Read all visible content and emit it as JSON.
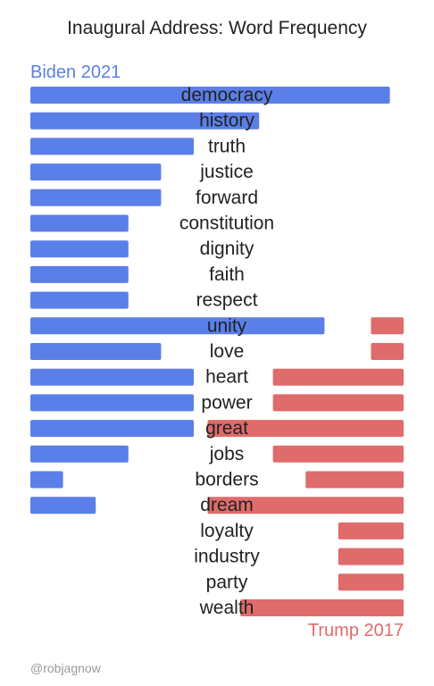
{
  "chart_data": {
    "type": "bar",
    "title": "Inaugural Address: Word Frequency",
    "categories": [
      "democracy",
      "history",
      "truth",
      "justice",
      "forward",
      "constitution",
      "dignity",
      "faith",
      "respect",
      "unity",
      "love",
      "heart",
      "power",
      "great",
      "jobs",
      "borders",
      "dream",
      "loyalty",
      "industry",
      "party",
      "wealth"
    ],
    "series": [
      {
        "name": "Biden 2021",
        "color": "#5a7fe8",
        "side": "left",
        "values": [
          11,
          7,
          5,
          4,
          4,
          3,
          3,
          3,
          3,
          9,
          4,
          5,
          5,
          5,
          3,
          1,
          2,
          0,
          0,
          0,
          0
        ]
      },
      {
        "name": "Trump 2017",
        "color": "#e06b6b",
        "side": "right",
        "values": [
          0,
          0,
          0,
          0,
          0,
          0,
          0,
          0,
          0,
          1,
          1,
          4,
          4,
          6,
          4,
          3,
          6,
          2,
          2,
          2,
          5
        ]
      }
    ]
  },
  "credit": "@robjagnow"
}
